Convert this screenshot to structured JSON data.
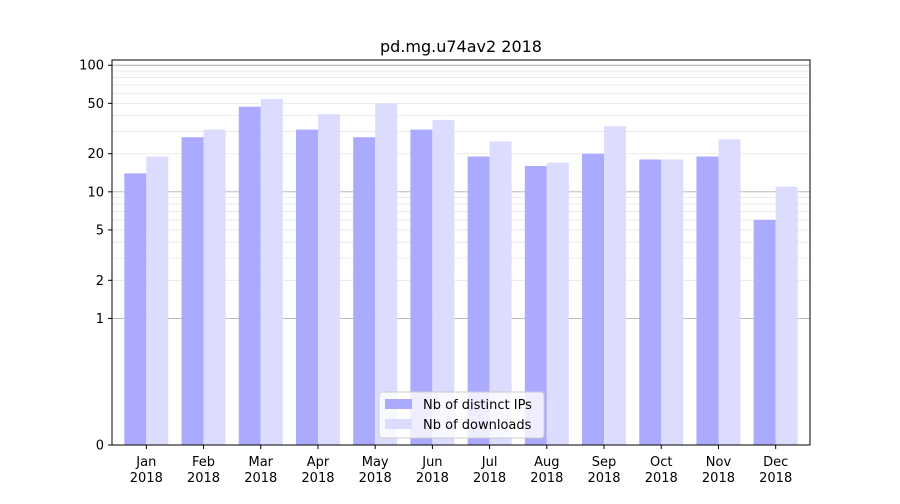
{
  "chart_data": {
    "type": "bar",
    "title": "pd.mg.u74av2 2018",
    "xlabel": "",
    "ylabel": "",
    "yscale": "symlog",
    "ylim": [
      0,
      110
    ],
    "yticks": [
      0,
      1,
      2,
      5,
      10,
      20,
      50,
      100
    ],
    "ytick_labels": [
      "0",
      "1",
      "2",
      "5",
      "10",
      "20",
      "50",
      "100"
    ],
    "grid": true,
    "legend_position": "lower center",
    "categories": [
      "Jan\n2018",
      "Feb\n2018",
      "Mar\n2018",
      "Apr\n2018",
      "May\n2018",
      "Jun\n2018",
      "Jul\n2018",
      "Aug\n2018",
      "Sep\n2018",
      "Oct\n2018",
      "Nov\n2018",
      "Dec\n2018"
    ],
    "series": [
      {
        "name": "Nb of distinct IPs",
        "color": "#aaaaff",
        "values": [
          14,
          27,
          47,
          31,
          27,
          31,
          19,
          16,
          20,
          18,
          19,
          6
        ]
      },
      {
        "name": "Nb of downloads",
        "color": "#dcdcff",
        "values": [
          19,
          31,
          54,
          41,
          50,
          37,
          25,
          17,
          33,
          18,
          26,
          11
        ]
      }
    ]
  }
}
